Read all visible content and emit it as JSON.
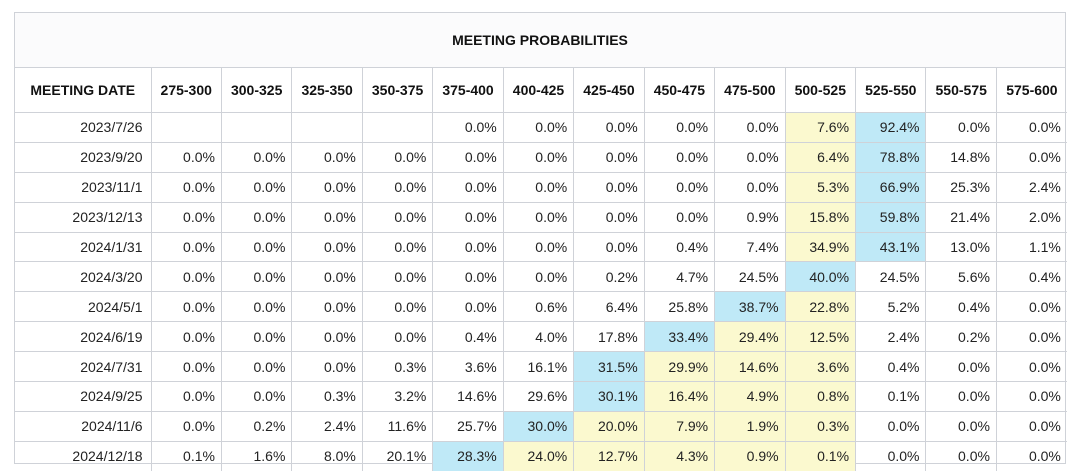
{
  "title": "MEETING PROBABILITIES",
  "columns": [
    "MEETING DATE",
    "275-300",
    "300-325",
    "325-350",
    "350-375",
    "375-400",
    "400-425",
    "425-450",
    "450-475",
    "475-500",
    "500-525",
    "525-550",
    "550-575",
    "575-600"
  ],
  "colors": {
    "highlight_yellow": "#fbf9cf",
    "highlight_blue": "#bfe9f7",
    "border": "#cfd2d8"
  },
  "rows": [
    {
      "date": "2023/7/26",
      "values": [
        "",
        "",
        "",
        "",
        "0.0%",
        "0.0%",
        "0.0%",
        "0.0%",
        "0.0%",
        "7.6%",
        "92.4%",
        "0.0%",
        "0.0%"
      ],
      "yellow": 9,
      "blue": 10
    },
    {
      "date": "2023/9/20",
      "values": [
        "0.0%",
        "0.0%",
        "0.0%",
        "0.0%",
        "0.0%",
        "0.0%",
        "0.0%",
        "0.0%",
        "0.0%",
        "6.4%",
        "78.8%",
        "14.8%",
        "0.0%"
      ],
      "yellow": 9,
      "blue": 10
    },
    {
      "date": "2023/11/1",
      "values": [
        "0.0%",
        "0.0%",
        "0.0%",
        "0.0%",
        "0.0%",
        "0.0%",
        "0.0%",
        "0.0%",
        "0.0%",
        "5.3%",
        "66.9%",
        "25.3%",
        "2.4%"
      ],
      "yellow": 9,
      "blue": 10
    },
    {
      "date": "2023/12/13",
      "values": [
        "0.0%",
        "0.0%",
        "0.0%",
        "0.0%",
        "0.0%",
        "0.0%",
        "0.0%",
        "0.0%",
        "0.9%",
        "15.8%",
        "59.8%",
        "21.4%",
        "2.0%"
      ],
      "yellow": 9,
      "blue": 10
    },
    {
      "date": "2024/1/31",
      "values": [
        "0.0%",
        "0.0%",
        "0.0%",
        "0.0%",
        "0.0%",
        "0.0%",
        "0.0%",
        "0.4%",
        "7.4%",
        "34.9%",
        "43.1%",
        "13.0%",
        "1.1%"
      ],
      "yellow": 9,
      "blue": 10
    },
    {
      "date": "2024/3/20",
      "values": [
        "0.0%",
        "0.0%",
        "0.0%",
        "0.0%",
        "0.0%",
        "0.0%",
        "0.2%",
        "4.7%",
        "24.5%",
        "40.0%",
        "24.5%",
        "5.6%",
        "0.4%"
      ],
      "yellow": -1,
      "blue": 9
    },
    {
      "date": "2024/5/1",
      "values": [
        "0.0%",
        "0.0%",
        "0.0%",
        "0.0%",
        "0.0%",
        "0.6%",
        "6.4%",
        "25.8%",
        "38.7%",
        "22.8%",
        "5.2%",
        "0.4%",
        "0.0%"
      ],
      "yellow": 9,
      "blue": 8
    },
    {
      "date": "2024/6/19",
      "values": [
        "0.0%",
        "0.0%",
        "0.0%",
        "0.0%",
        "0.4%",
        "4.0%",
        "17.8%",
        "33.4%",
        "29.4%",
        "12.5%",
        "2.4%",
        "0.2%",
        "0.0%"
      ],
      "yellow": [
        8,
        9
      ],
      "blue": 7
    },
    {
      "date": "2024/7/31",
      "values": [
        "0.0%",
        "0.0%",
        "0.0%",
        "0.3%",
        "3.6%",
        "16.1%",
        "31.5%",
        "29.9%",
        "14.6%",
        "3.6%",
        "0.4%",
        "0.0%",
        "0.0%"
      ],
      "yellow": [
        7,
        8,
        9
      ],
      "blue": 6
    },
    {
      "date": "2024/9/25",
      "values": [
        "0.0%",
        "0.0%",
        "0.3%",
        "3.2%",
        "14.6%",
        "29.6%",
        "30.1%",
        "16.4%",
        "4.9%",
        "0.8%",
        "0.1%",
        "0.0%",
        "0.0%"
      ],
      "yellow": [
        7,
        8,
        9
      ],
      "blue": 6
    },
    {
      "date": "2024/11/6",
      "values": [
        "0.0%",
        "0.2%",
        "2.4%",
        "11.6%",
        "25.7%",
        "30.0%",
        "20.0%",
        "7.9%",
        "1.9%",
        "0.3%",
        "0.0%",
        "0.0%",
        "0.0%"
      ],
      "yellow": [
        6,
        7,
        8,
        9
      ],
      "blue": 5
    },
    {
      "date": "2024/12/18",
      "values": [
        "0.1%",
        "1.6%",
        "8.0%",
        "20.1%",
        "28.3%",
        "24.0%",
        "12.7%",
        "4.3%",
        "0.9%",
        "0.1%",
        "0.0%",
        "0.0%",
        "0.0%"
      ],
      "yellow": [
        5,
        6,
        7,
        8,
        9
      ],
      "blue": 4
    }
  ]
}
